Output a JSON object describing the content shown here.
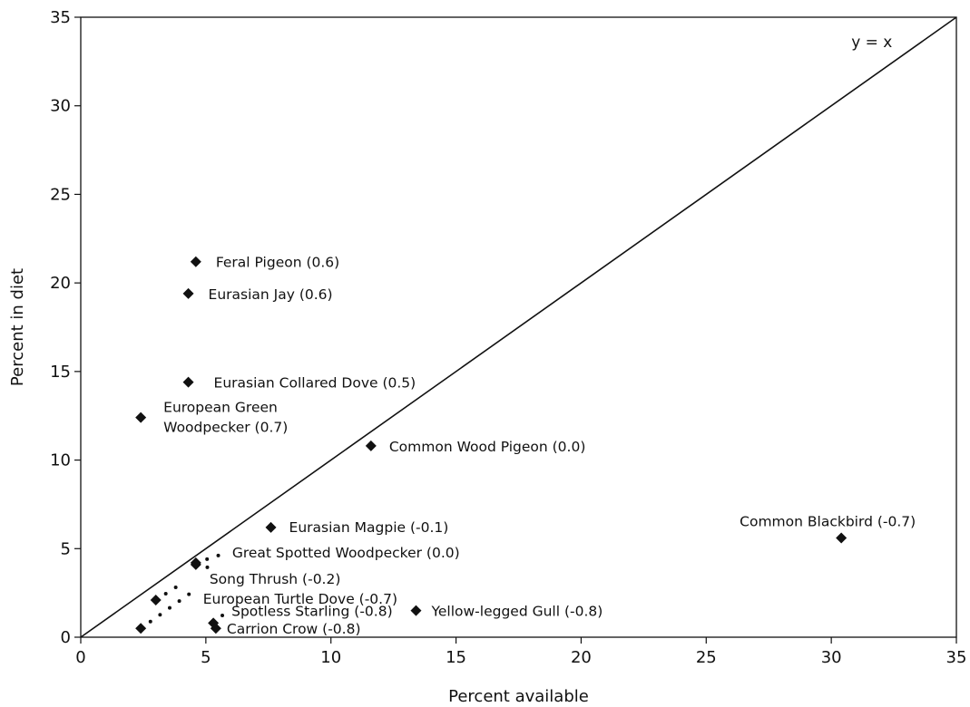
{
  "chart_data": {
    "type": "scatter",
    "xlabel": "Percent available",
    "ylabel": "Percent in diet",
    "xlim": [
      0,
      35
    ],
    "ylim": [
      0,
      35
    ],
    "x_ticks": [
      "0",
      "5",
      "10",
      "15",
      "20",
      "25",
      "30",
      "35"
    ],
    "y_ticks": [
      "0",
      "5",
      "10",
      "15",
      "20",
      "25",
      "30",
      "35"
    ],
    "grid": false,
    "reference_line": {
      "label": "y = x",
      "slope": 1,
      "intercept": 0
    },
    "marker": "diamond",
    "points": [
      {
        "label": "Feral Pigeon (0.6)",
        "x": 4.6,
        "y": 21.2
      },
      {
        "label": "Eurasian Jay (0.6)",
        "x": 4.3,
        "y": 19.4
      },
      {
        "label": "Eurasian Collared Dove (0.5)",
        "x": 4.3,
        "y": 14.4
      },
      {
        "label": "European Green Woodpecker (0.7)",
        "x": 2.4,
        "y": 12.4
      },
      {
        "label": "Common Wood Pigeon (0.0)",
        "x": 11.6,
        "y": 10.8
      },
      {
        "label": "Eurasian Magpie (-0.1)",
        "x": 7.6,
        "y": 6.2
      },
      {
        "label": "Common Blackbird (-0.7)",
        "x": 30.4,
        "y": 5.6
      },
      {
        "label": "Great Spotted Woodpecker (0.0)",
        "x": 4.6,
        "y": 4.2
      },
      {
        "label": "Song Thrush (-0.2)",
        "x": 4.6,
        "y": 4.1
      },
      {
        "label": "European Turtle Dove (-0.7)",
        "x": 3.0,
        "y": 2.1
      },
      {
        "label": "Yellow-legged Gull (-0.8)",
        "x": 13.4,
        "y": 1.5
      },
      {
        "label": "Spotless Starling (-0.8)",
        "x": 5.3,
        "y": 0.8
      },
      {
        "label": "Carrion Crow (-0.8)",
        "x": 5.4,
        "y": 0.5
      },
      {
        "label": "",
        "x": 2.4,
        "y": 0.5
      }
    ]
  }
}
